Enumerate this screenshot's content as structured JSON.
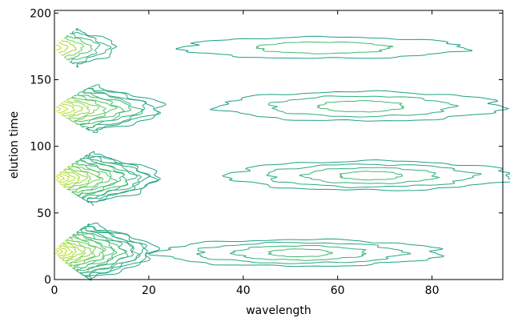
{
  "chart_data": {
    "type": "contour",
    "xlabel": "wavelength",
    "ylabel": "elution time",
    "xlim": [
      0,
      95
    ],
    "ylim": [
      0,
      202
    ],
    "xticks": [
      0,
      20,
      40,
      60,
      80
    ],
    "yticks": [
      0,
      50,
      100,
      150,
      200
    ],
    "grid": false,
    "colormap": "viridis-like (teal to yellow)",
    "colors": {
      "outer": "#1fa187",
      "mid": "#4ac16d",
      "inner": "#a0da39",
      "core": "#d0e11c"
    },
    "bands": [
      {
        "elution_center": 21,
        "elution_range": [
          0,
          45
        ],
        "peaks": [
          {
            "wavelength": 0,
            "elution": 21,
            "levels": 20,
            "wavelength_extent": 21,
            "elution_extent": 23
          },
          {
            "wavelength": 52,
            "elution": 20,
            "levels": 4,
            "wavelength_extent": 30,
            "elution_extent": 10
          }
        ]
      },
      {
        "elution_center": 76,
        "elution_range": [
          55,
          97
        ],
        "peaks": [
          {
            "wavelength": 0,
            "elution": 76,
            "levels": 18,
            "wavelength_extent": 22,
            "elution_extent": 21
          },
          {
            "wavelength": 67,
            "elution": 78,
            "levels": 4,
            "wavelength_extent": 30,
            "elution_extent": 11
          }
        ]
      },
      {
        "elution_center": 128,
        "elution_range": [
          108,
          148
        ],
        "peaks": [
          {
            "wavelength": 0,
            "elution": 128,
            "levels": 14,
            "wavelength_extent": 23,
            "elution_extent": 19
          },
          {
            "wavelength": 65,
            "elution": 130,
            "levels": 3,
            "wavelength_extent": 30,
            "elution_extent": 11
          }
        ]
      },
      {
        "elution_center": 174,
        "elution_range": [
          158,
          198
        ],
        "peaks": [
          {
            "wavelength": 0,
            "elution": 174,
            "levels": 8,
            "wavelength_extent": 13,
            "elution_extent": 15
          },
          {
            "wavelength": 57,
            "elution": 174,
            "levels": 2,
            "wavelength_extent": 30,
            "elution_extent": 8
          }
        ]
      }
    ]
  }
}
